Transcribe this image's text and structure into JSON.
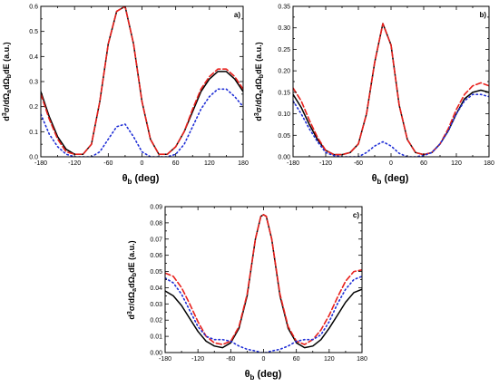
{
  "colors": {
    "solid": "#000000",
    "dashed": "#e8201c",
    "dotted": "#1f2ed6"
  },
  "chart_data": [
    {
      "type": "line",
      "panel_label": "a)",
      "xlabel": "θb (deg)",
      "ylabel": "d3σ/dΩadΩbdE (a.u.)",
      "xlim": [
        -180,
        180
      ],
      "ylim": [
        0,
        0.6
      ],
      "xticks": [
        "-180",
        "-120",
        "-60",
        "0",
        "60",
        "120",
        "180"
      ],
      "yticks": [
        "0.0",
        "0.1",
        "0.2",
        "0.3",
        "0.4",
        "0.5",
        "0.6"
      ],
      "series": [
        {
          "style": "solid",
          "x": [
            -180,
            -165,
            -150,
            -135,
            -120,
            -105,
            -90,
            -75,
            -60,
            -45,
            -30,
            -15,
            0,
            15,
            30,
            45,
            60,
            75,
            90,
            105,
            120,
            135,
            150,
            165,
            180
          ],
          "y": [
            0.26,
            0.16,
            0.08,
            0.03,
            0.01,
            0.01,
            0.05,
            0.22,
            0.45,
            0.58,
            0.6,
            0.45,
            0.22,
            0.07,
            0.01,
            0.01,
            0.04,
            0.1,
            0.18,
            0.26,
            0.31,
            0.34,
            0.34,
            0.31,
            0.26
          ]
        },
        {
          "style": "dashed",
          "x": [
            -180,
            -165,
            -150,
            -135,
            -120,
            -105,
            -90,
            -75,
            -60,
            -45,
            -30,
            -15,
            0,
            15,
            30,
            45,
            60,
            75,
            90,
            105,
            120,
            135,
            150,
            165,
            180
          ],
          "y": [
            0.25,
            0.15,
            0.07,
            0.02,
            0.01,
            0.01,
            0.05,
            0.22,
            0.45,
            0.58,
            0.6,
            0.45,
            0.22,
            0.07,
            0.01,
            0.01,
            0.04,
            0.1,
            0.19,
            0.27,
            0.32,
            0.35,
            0.35,
            0.32,
            0.27
          ]
        },
        {
          "style": "dotted",
          "x": [
            -180,
            -165,
            -150,
            -135,
            -120,
            -105,
            -90,
            -75,
            -60,
            -45,
            -30,
            -15,
            0,
            15,
            30,
            45,
            60,
            75,
            90,
            105,
            120,
            135,
            150,
            165,
            180
          ],
          "y": [
            0.17,
            0.09,
            0.04,
            0.01,
            0.0,
            0.0,
            0.0,
            0.02,
            0.07,
            0.12,
            0.13,
            0.08,
            0.02,
            0.0,
            0.0,
            0.0,
            0.01,
            0.05,
            0.12,
            0.19,
            0.24,
            0.27,
            0.27,
            0.24,
            0.2
          ]
        }
      ]
    },
    {
      "type": "line",
      "panel_label": "b)",
      "xlabel": "θb (deg)",
      "ylabel": "d3σ/dΩadΩbdE (a.u.)",
      "xlim": [
        -180,
        180
      ],
      "ylim": [
        0,
        0.35
      ],
      "xticks": [
        "-180",
        "-120",
        "-60",
        "0",
        "60",
        "120",
        "180"
      ],
      "yticks": [
        "0.00",
        "0.05",
        "0.10",
        "0.15",
        "0.20",
        "0.25",
        "0.30",
        "0.35"
      ],
      "series": [
        {
          "style": "solid",
          "x": [
            -180,
            -165,
            -150,
            -135,
            -120,
            -105,
            -90,
            -75,
            -60,
            -45,
            -30,
            -15,
            0,
            15,
            30,
            45,
            60,
            75,
            90,
            105,
            120,
            135,
            150,
            165,
            180
          ],
          "y": [
            0.145,
            0.115,
            0.075,
            0.04,
            0.015,
            0.005,
            0.005,
            0.01,
            0.03,
            0.1,
            0.22,
            0.31,
            0.26,
            0.12,
            0.04,
            0.01,
            0.005,
            0.01,
            0.03,
            0.06,
            0.1,
            0.135,
            0.15,
            0.155,
            0.15
          ]
        },
        {
          "style": "dashed",
          "x": [
            -180,
            -165,
            -150,
            -135,
            -120,
            -105,
            -90,
            -75,
            -60,
            -45,
            -30,
            -15,
            0,
            15,
            30,
            45,
            60,
            75,
            90,
            105,
            120,
            135,
            150,
            165,
            180
          ],
          "y": [
            0.16,
            0.13,
            0.085,
            0.045,
            0.015,
            0.005,
            0.005,
            0.01,
            0.03,
            0.1,
            0.22,
            0.31,
            0.26,
            0.12,
            0.04,
            0.01,
            0.005,
            0.01,
            0.03,
            0.065,
            0.11,
            0.145,
            0.165,
            0.172,
            0.165
          ]
        },
        {
          "style": "dotted",
          "x": [
            -180,
            -165,
            -150,
            -135,
            -120,
            -105,
            -90,
            -75,
            -60,
            -45,
            -30,
            -15,
            0,
            15,
            30,
            45,
            60,
            75,
            90,
            105,
            120,
            135,
            150,
            165,
            180
          ],
          "y": [
            0.13,
            0.1,
            0.065,
            0.035,
            0.01,
            0.003,
            0.0,
            0.0,
            0.0,
            0.01,
            0.025,
            0.035,
            0.025,
            0.008,
            0.0,
            0.0,
            0.003,
            0.01,
            0.03,
            0.06,
            0.1,
            0.13,
            0.145,
            0.145,
            0.14
          ]
        }
      ]
    },
    {
      "type": "line",
      "panel_label": "c)",
      "xlabel": "θb (deg)",
      "ylabel": "d3σ/dΩadΩbdE (a.u.)",
      "xlim": [
        -180,
        180
      ],
      "ylim": [
        0,
        0.09
      ],
      "xticks": [
        "-180",
        "-120",
        "-60",
        "0",
        "60",
        "120",
        "180"
      ],
      "yticks": [
        "0.00",
        "0.01",
        "0.02",
        "0.03",
        "0.04",
        "0.05",
        "0.06",
        "0.07",
        "0.08",
        "0.09"
      ],
      "series": [
        {
          "style": "solid",
          "x": [
            -180,
            -165,
            -150,
            -135,
            -120,
            -105,
            -90,
            -75,
            -60,
            -45,
            -30,
            -15,
            -5,
            0,
            5,
            15,
            30,
            45,
            60,
            75,
            90,
            105,
            120,
            135,
            150,
            165,
            180
          ],
          "y": [
            0.038,
            0.035,
            0.029,
            0.021,
            0.013,
            0.007,
            0.004,
            0.003,
            0.006,
            0.015,
            0.035,
            0.07,
            0.084,
            0.085,
            0.084,
            0.07,
            0.035,
            0.015,
            0.006,
            0.003,
            0.004,
            0.008,
            0.015,
            0.023,
            0.031,
            0.037,
            0.039
          ]
        },
        {
          "style": "dashed",
          "x": [
            -180,
            -165,
            -150,
            -135,
            -120,
            -105,
            -90,
            -75,
            -60,
            -45,
            -30,
            -15,
            -5,
            0,
            5,
            15,
            30,
            45,
            60,
            75,
            90,
            105,
            120,
            135,
            150,
            165,
            180
          ],
          "y": [
            0.049,
            0.047,
            0.04,
            0.03,
            0.019,
            0.01,
            0.006,
            0.005,
            0.007,
            0.016,
            0.036,
            0.07,
            0.084,
            0.085,
            0.084,
            0.07,
            0.036,
            0.016,
            0.007,
            0.005,
            0.008,
            0.014,
            0.023,
            0.034,
            0.044,
            0.05,
            0.051
          ]
        },
        {
          "style": "dotted",
          "x": [
            -180,
            -165,
            -150,
            -135,
            -120,
            -105,
            -90,
            -75,
            -60,
            -45,
            -30,
            -15,
            -5,
            0,
            5,
            15,
            30,
            45,
            60,
            75,
            90,
            105,
            120,
            135,
            150,
            165,
            180
          ],
          "y": [
            0.046,
            0.043,
            0.036,
            0.026,
            0.016,
            0.01,
            0.008,
            0.008,
            0.007,
            0.004,
            0.002,
            0.001,
            0.0,
            0.0,
            0.0,
            0.001,
            0.002,
            0.004,
            0.007,
            0.008,
            0.008,
            0.011,
            0.019,
            0.03,
            0.039,
            0.045,
            0.047
          ]
        }
      ]
    }
  ]
}
